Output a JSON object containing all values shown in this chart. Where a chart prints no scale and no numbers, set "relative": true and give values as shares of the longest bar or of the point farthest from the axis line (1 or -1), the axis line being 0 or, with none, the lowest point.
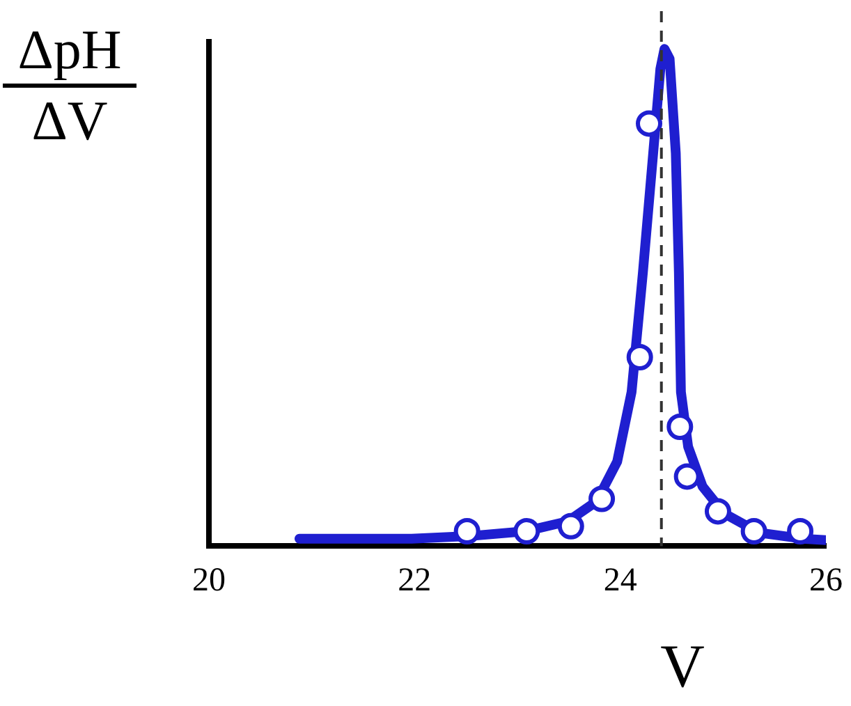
{
  "chart_data": {
    "type": "line",
    "ylabel": "ΔpH\nΔV",
    "xlabel": "V",
    "relative": true,
    "xlim": [
      20,
      26
    ],
    "xticks": [
      20,
      22,
      24,
      26
    ],
    "grid": false,
    "legend": false,
    "ref_lines": [
      {
        "axis": "x",
        "value": 24.4,
        "color": "#333333",
        "line_style": "dashed"
      }
    ],
    "series": [
      {
        "color": "#1f1fd0",
        "marker": "none",
        "line_style": "solid",
        "x": [
          20.88,
          21.97,
          22.52,
          23.08,
          23.49,
          23.77,
          23.97,
          24.11,
          24.22,
          24.32,
          24.39,
          24.43,
          24.48,
          24.54,
          24.57,
          24.59,
          24.66,
          24.8,
          25.01,
          25.35,
          25.77,
          26
        ],
        "values": [
          0.015,
          0.015,
          0.02,
          0.03,
          0.05,
          0.09,
          0.17,
          0.31,
          0.55,
          0.79,
          0.96,
          1,
          0.98,
          0.79,
          0.55,
          0.31,
          0.2,
          0.12,
          0.066,
          0.027,
          0.015,
          0.012
        ]
      },
      {
        "type": "scatter",
        "color": "#1f1fd0",
        "marker": "circle",
        "x": [
          22.51,
          23.09,
          23.52,
          23.82,
          24.19,
          24.28,
          24.58,
          24.65,
          24.95,
          25.3,
          25.75
        ],
        "values": [
          0.03,
          0.03,
          0.04,
          0.095,
          0.38,
          0.85,
          0.24,
          0.14,
          0.07,
          0.03,
          0.03
        ]
      }
    ]
  }
}
